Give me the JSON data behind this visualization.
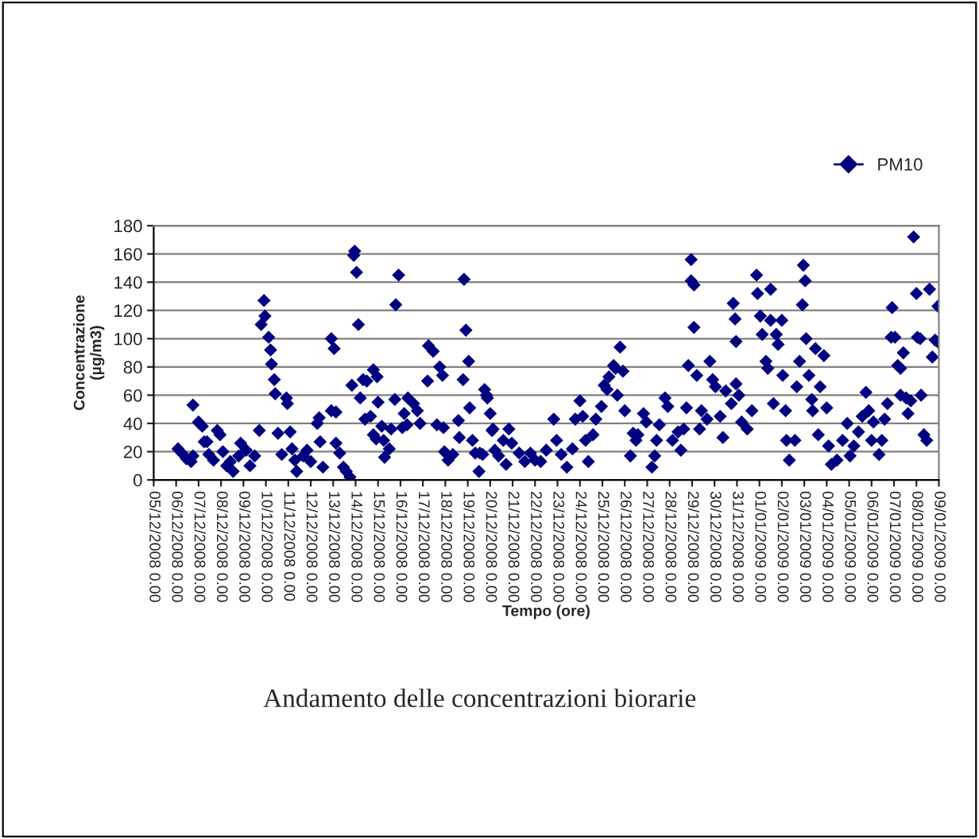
{
  "chart_data": {
    "type": "scatter",
    "xlabel": "Tempo (ore)",
    "ylabel": "Concentrazione\n(µg/m3)",
    "annotations": [
      "Andamento delle concentrazioni biorarie"
    ],
    "xlim": [
      "2008-12-05",
      "2009-01-09"
    ],
    "ylim": [
      0,
      180
    ],
    "yticks": [
      0,
      20,
      40,
      60,
      80,
      100,
      120,
      140,
      160,
      180
    ],
    "xticks": [
      {
        "value": "2008-12-05",
        "label": "05/12/2008 0.00"
      },
      {
        "value": "2008-12-06",
        "label": "06/12/2008 0.00"
      },
      {
        "value": "2008-12-07",
        "label": "07/12/2008 0.00"
      },
      {
        "value": "2008-12-08",
        "label": "08/12/2008 0.00"
      },
      {
        "value": "2008-12-09",
        "label": "09/12/2008 0.00"
      },
      {
        "value": "2008-12-10",
        "label": "10/12/2008 0.00"
      },
      {
        "value": "2008-12-11",
        "label": "11/12/2008 0.00"
      },
      {
        "value": "2008-12-12",
        "label": "12/12/2008 0.00"
      },
      {
        "value": "2008-12-13",
        "label": "13/12/2008 0.00"
      },
      {
        "value": "2008-12-14",
        "label": "14/12/2008 0.00"
      },
      {
        "value": "2008-12-15",
        "label": "15/12/2008 0.00"
      },
      {
        "value": "2008-12-16",
        "label": "16/12/2008 0.00"
      },
      {
        "value": "2008-12-17",
        "label": "17/12/2008 0.00"
      },
      {
        "value": "2008-12-18",
        "label": "18/12/2008 0.00"
      },
      {
        "value": "2008-12-19",
        "label": "19/12/2008 0.00"
      },
      {
        "value": "2008-12-20",
        "label": "20/12/2008 0.00"
      },
      {
        "value": "2008-12-21",
        "label": "21/12/2008 0.00"
      },
      {
        "value": "2008-12-22",
        "label": "22/12/2008 0.00"
      },
      {
        "value": "2008-12-23",
        "label": "23/12/2008 0.00"
      },
      {
        "value": "2008-12-24",
        "label": "24/12/2008 0.00"
      },
      {
        "value": "2008-12-25",
        "label": "25/12/2008 0.00"
      },
      {
        "value": "2008-12-26",
        "label": "26/12/2008 0.00"
      },
      {
        "value": "2008-12-27",
        "label": "27/12/2008 0.00"
      },
      {
        "value": "2008-12-28",
        "label": "28/12/2008 0.00"
      },
      {
        "value": "2008-12-29",
        "label": "29/12/2008 0.00"
      },
      {
        "value": "2008-12-30",
        "label": "30/12/2008 0.00"
      },
      {
        "value": "2008-12-31",
        "label": "31/12/2008 0.00"
      },
      {
        "value": "2009-01-01",
        "label": "01/01/2009 0.00"
      },
      {
        "value": "2009-01-02",
        "label": "02/01/2009 0.00"
      },
      {
        "value": "2009-01-03",
        "label": "03/01/2009 0.00"
      },
      {
        "value": "2009-01-04",
        "label": "04/01/2009 0.00"
      },
      {
        "value": "2009-01-05",
        "label": "05/01/2009 0.00"
      },
      {
        "value": "2009-01-06",
        "label": "06/01/2009 0.00"
      },
      {
        "value": "2009-01-07",
        "label": "07/01/2009 0.00"
      },
      {
        "value": "2009-01-08",
        "label": "08/01/2009 0.00"
      },
      {
        "value": "2009-01-09",
        "label": "09/01/2009 0.00"
      }
    ],
    "grid": "y",
    "legend": "top right",
    "marker": "diamond",
    "series": [
      {
        "name": "PM10",
        "color": "#000080",
        "x": [
          "2008-12-06T02:00",
          "2008-12-06T06:00",
          "2008-12-06T11:00",
          "2008-12-06T16:00",
          "2008-12-06T18:00",
          "2008-12-06T18:00",
          "2008-12-07T00:00",
          "2008-12-07T01:00",
          "2008-12-07T04:00",
          "2008-12-07T06:00",
          "2008-12-07T09:00",
          "2008-12-07T11:00",
          "2008-12-07T16:00",
          "2008-12-07T20:00",
          "2008-12-07T23:00",
          "2008-12-08T02:00",
          "2008-12-08T06:00",
          "2008-12-08T10:00",
          "2008-12-08T13:00",
          "2008-12-08T19:00",
          "2008-12-08T21:00",
          "2008-12-09T03:00",
          "2008-12-09T07:00",
          "2008-12-09T12:00",
          "2008-12-09T17:00",
          "2008-12-09T19:00",
          "2008-12-09T22:00",
          "2008-12-09T23:00",
          "2008-12-10T03:00",
          "2008-12-10T05:00",
          "2008-12-10T06:00",
          "2008-12-10T09:00",
          "2008-12-10T10:00",
          "2008-12-10T13:00",
          "2008-12-10T17:00",
          "2008-12-10T22:00",
          "2008-12-10T23:00",
          "2008-12-11T02:00",
          "2008-12-11T04:00",
          "2008-12-11T07:00",
          "2008-12-11T09:00",
          "2008-12-11T16:00",
          "2008-12-11T20:00",
          "2008-12-12T00:00",
          "2008-12-12T07:00",
          "2008-12-12T09:00",
          "2008-12-12T10:00",
          "2008-12-12T13:00",
          "2008-12-12T22:00",
          "2008-12-13T01:00",
          "2008-12-12T22:00",
          "2008-12-13T03:00",
          "2008-12-13T03:00",
          "2008-12-13T07:00",
          "2008-12-13T11:00",
          "2008-12-13T14:00",
          "2008-12-13T18:00",
          "2008-12-13T20:00",
          "2008-12-13T22:00",
          "2008-12-13T23:00",
          "2008-12-14T01:00",
          "2008-12-14T03:00",
          "2008-12-14T05:00",
          "2008-12-14T08:00",
          "2008-12-14T10:00",
          "2008-12-14T12:00",
          "2008-12-14T16:00",
          "2008-12-14T19:00",
          "2008-12-14T22:00",
          "2008-12-14T19:00",
          "2008-12-14T23:00",
          "2008-12-15T00:00",
          "2008-12-15T04:00",
          "2008-12-15T06:00",
          "2008-12-15T07:00",
          "2008-12-15T12:00",
          "2008-12-15T14:00",
          "2008-12-15T18:00",
          "2008-12-15T19:00",
          "2008-12-15T22:00",
          "2008-12-16T02:00",
          "2008-12-16T04:00",
          "2008-12-16T07:00",
          "2008-12-16T08:00",
          "2008-12-16T14:00",
          "2008-12-16T18:00",
          "2008-12-16T21:00",
          "2008-12-17T05:00",
          "2008-12-17T06:00",
          "2008-12-17T11:00",
          "2008-12-17T15:00",
          "2008-12-17T18:00",
          "2008-12-17T21:00",
          "2008-12-17T22:00",
          "2008-12-17T23:00",
          "2008-12-18T03:00",
          "2008-12-18T08:00",
          "2008-12-18T14:00",
          "2008-12-18T15:00",
          "2008-12-18T19:00",
          "2008-12-18T20:00",
          "2008-12-18T22:00",
          "2008-12-19T01:00",
          "2008-12-19T02:00",
          "2008-12-19T05:00",
          "2008-12-19T08:00",
          "2008-12-19T12:00",
          "2008-12-19T13:00",
          "2008-12-19T16:00",
          "2008-12-19T18:00",
          "2008-12-19T20:00",
          "2008-12-19T21:00",
          "2008-12-20T00:00",
          "2008-12-20T02:00",
          "2008-12-20T03:00",
          "2008-12-20T05:00",
          "2008-12-20T09:00",
          "2008-12-20T14:00",
          "2008-12-20T17:00",
          "2008-12-20T20:00",
          "2008-12-20T23:00",
          "2008-12-21T07:00",
          "2008-12-21T13:00",
          "2008-12-21T19:00",
          "2008-12-22T00:00",
          "2008-12-22T06:00",
          "2008-12-22T12:00",
          "2008-12-22T20:00",
          "2008-12-22T23:00",
          "2008-12-23T04:00",
          "2008-12-23T10:00",
          "2008-12-23T16:00",
          "2008-12-23T19:00",
          "2008-12-24T00:00",
          "2008-12-24T03:00",
          "2008-12-24T06:00",
          "2008-12-24T09:00",
          "2008-12-24T14:00",
          "2008-12-24T17:00",
          "2008-12-24T23:00",
          "2008-12-25T02:00",
          "2008-12-25T05:00",
          "2008-12-25T07:00",
          "2008-12-25T12:00",
          "2008-12-25T14:00",
          "2008-12-25T16:00",
          "2008-12-25T19:00",
          "2008-12-25T22:00",
          "2008-12-26T00:00",
          "2008-12-26T06:00",
          "2008-12-26T09:00",
          "2008-12-26T12:00",
          "2008-12-26T14:00",
          "2008-12-26T20:00",
          "2008-12-26T23:00",
          "2008-12-27T05:00",
          "2008-12-27T08:00",
          "2008-12-27T10:00",
          "2008-12-27T13:00",
          "2008-12-27T19:00",
          "2008-12-27T22:00",
          "2008-12-28T03:00",
          "2008-12-28T09:00",
          "2008-12-28T12:00",
          "2008-12-28T15:00",
          "2008-12-28T18:00",
          "2008-12-28T20:00",
          "2008-12-28T23:00",
          "2008-12-28T23:00",
          "2008-12-29T02:00",
          "2008-12-29T02:00",
          "2008-12-29T05:00",
          "2008-12-29T08:00",
          "2008-12-29T10:00",
          "2008-12-29T16:00",
          "2008-12-29T19:00",
          "2008-12-29T22:00",
          "2008-12-30T01:00",
          "2008-12-30T06:00",
          "2008-12-30T09:00",
          "2008-12-30T12:00",
          "2008-12-30T18:00",
          "2008-12-30T20:00",
          "2008-12-30T22:00",
          "2008-12-30T23:00",
          "2008-12-30T23:00",
          "2008-12-31T02:00",
          "2008-12-31T05:00",
          "2008-12-31T11:00",
          "2008-12-31T16:00",
          "2008-12-31T21:00",
          "2008-12-31T22:00",
          "2009-01-01T01:00",
          "2009-01-01T03:00",
          "2009-01-01T07:00",
          "2009-01-01T09:00",
          "2009-01-01T12:00",
          "2009-01-01T12:00",
          "2009-01-01T15:00",
          "2009-01-01T18:00",
          "2009-01-01T20:00",
          "2009-01-02T00:00",
          "2009-01-02T01:00",
          "2009-01-02T04:00",
          "2009-01-02T05:00",
          "2009-01-02T08:00",
          "2009-01-02T14:00",
          "2009-01-02T16:00",
          "2009-01-02T19:00",
          "2009-01-02T22:00",
          "2009-01-02T23:00",
          "2009-01-03T01:00",
          "2009-01-03T02:00",
          "2009-01-03T05:00",
          "2009-01-03T08:00",
          "2009-01-03T09:00",
          "2009-01-03T12:00",
          "2009-01-03T15:00",
          "2009-01-03T17:00",
          "2009-01-03T21:00",
          "2009-01-04T00:00",
          "2009-01-04T02:00",
          "2009-01-04T05:00",
          "2009-01-04T11:00",
          "2009-01-04T17:00",
          "2009-01-04T22:00",
          "2009-01-05T01:00",
          "2009-01-05T05:00",
          "2009-01-05T10:00",
          "2009-01-05T14:00",
          "2009-01-05T18:00",
          "2009-01-05T21:00",
          "2009-01-06T00:00",
          "2009-01-06T02:00",
          "2009-01-06T08:00",
          "2009-01-06T11:00",
          "2009-01-06T14:00",
          "2009-01-06T17:00",
          "2009-01-06T21:00",
          "2009-01-06T22:00",
          "2009-01-07T01:00",
          "2009-01-07T04:00",
          "2009-01-07T07:00",
          "2009-01-07T07:00",
          "2009-01-07T10:00",
          "2009-01-07T13:00",
          "2009-01-07T15:00",
          "2009-01-07T18:00",
          "2009-01-07T21:00",
          "2009-01-08T00:00",
          "2009-01-08T01:00",
          "2009-01-08T04:00",
          "2009-01-08T05:00",
          "2009-01-08T08:00",
          "2009-01-08T11:00",
          "2009-01-08T14:00",
          "2009-01-08T17:00",
          "2009-01-08T20:00",
          "2009-01-08T23:00",
          "2009-01-09T00:00"
        ],
        "values": [
          22,
          19,
          15,
          13,
          17,
          53,
          41,
          40,
          38,
          27,
          27,
          18,
          14,
          35,
          32,
          20,
          10,
          13,
          6,
          17,
          26,
          21,
          10,
          17,
          35,
          110,
          127,
          116,
          101,
          92,
          82,
          71,
          61,
          33,
          18,
          58,
          54,
          34,
          22,
          14,
          6,
          17,
          21,
          13,
          40,
          44,
          27,
          9,
          100,
          93,
          49,
          48,
          26,
          19,
          9,
          6,
          2,
          67,
          159,
          162,
          147,
          110,
          58,
          71,
          43,
          70,
          45,
          32,
          29,
          78,
          73,
          55,
          38,
          28,
          16,
          22,
          36,
          57,
          124,
          145,
          37,
          47,
          39,
          58,
          54,
          49,
          40,
          70,
          95,
          91,
          39,
          80,
          74,
          37,
          20,
          14,
          18,
          42,
          30,
          71,
          142,
          106,
          84,
          51,
          28,
          19,
          6,
          19,
          18,
          64,
          60,
          58,
          47,
          35,
          36,
          21,
          17,
          28,
          11,
          36,
          26,
          19,
          13,
          19,
          14,
          13,
          21,
          43,
          28,
          18,
          9,
          22,
          43,
          56,
          45,
          28,
          13,
          32,
          43,
          52,
          67,
          64,
          73,
          81,
          79,
          60,
          94,
          77,
          49,
          17,
          33,
          28,
          32,
          47,
          41,
          9,
          17,
          28,
          39,
          58,
          52,
          28,
          34,
          21,
          36,
          51,
          81,
          156,
          141,
          138,
          108,
          74,
          36,
          49,
          43,
          84,
          71,
          66,
          45,
          30,
          63,
          54,
          125,
          114,
          98,
          68,
          60,
          41,
          36,
          49,
          145,
          132,
          116,
          103,
          84,
          79,
          135,
          113,
          54,
          103,
          96,
          113,
          74,
          49,
          28,
          14,
          28,
          66,
          84,
          124,
          152,
          141,
          100,
          74,
          57,
          49,
          93,
          32,
          66,
          88,
          51,
          24,
          11,
          14,
          28,
          40,
          17,
          24,
          34,
          45,
          62,
          49,
          28,
          41,
          18,
          28,
          43,
          54,
          101,
          122,
          101,
          81,
          79,
          60,
          90,
          58,
          47,
          56,
          172,
          132,
          101,
          100,
          60,
          32,
          28,
          135,
          87,
          99,
          123,
          97
        ]
      }
    ]
  }
}
